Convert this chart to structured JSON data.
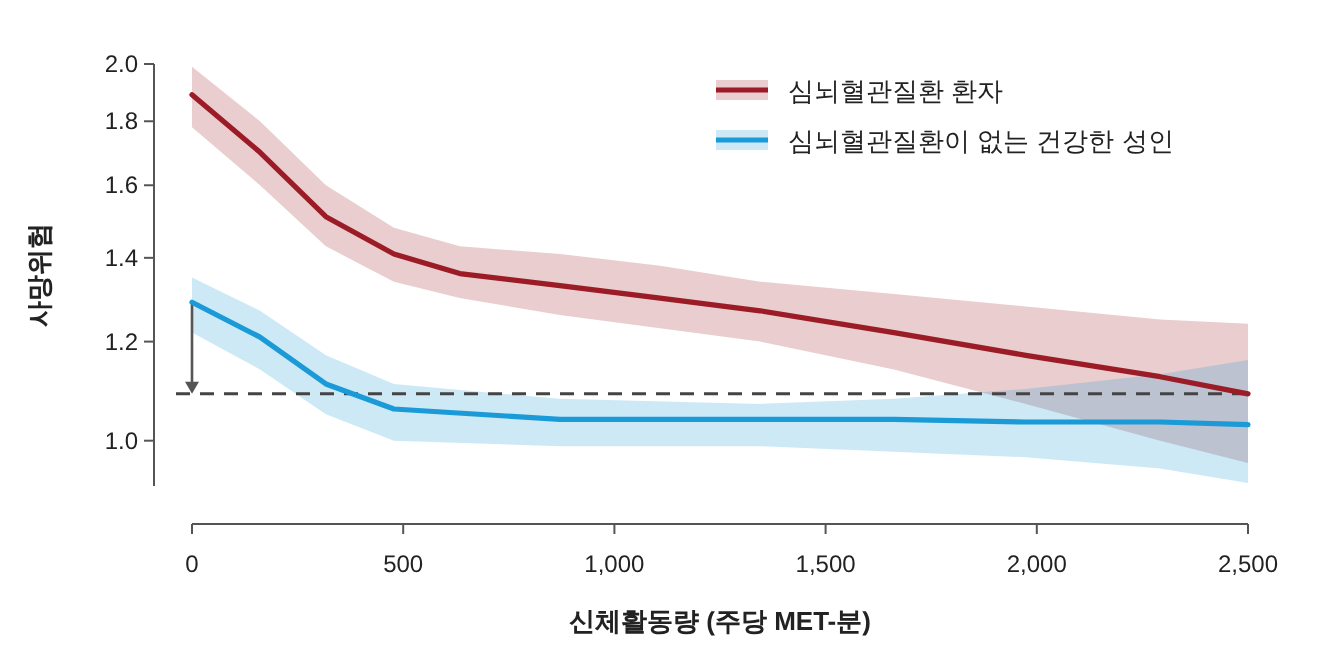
{
  "chart_data": {
    "type": "line",
    "xlabel": "신체활동량 (주당 MET-분)",
    "ylabel": "사망위험",
    "log": "y",
    "legend": "top right",
    "xlim": [
      0,
      2500
    ],
    "xticks": [
      0,
      500,
      {
        "value": 1000,
        "label": "1,000"
      },
      {
        "value": 1500,
        "label": "1,500"
      },
      {
        "value": 2000,
        "label": "2,000"
      },
      {
        "value": 2500,
        "label": "2,500"
      }
    ],
    "ylim": [
      0.92,
      2.0
    ],
    "yticks": [
      {
        "value": 1,
        "label": "1.0"
      },
      1.2,
      1.4,
      1.6,
      1.8,
      {
        "value": 2,
        "label": "2.0"
      }
    ],
    "ref_lines": [
      {
        "axis": "y",
        "value": 1.09,
        "color": "#444444",
        "line_style": "dashed"
      }
    ],
    "series": [
      {
        "name": "심뇌혈관질환 환자",
        "color": "#9b1b26",
        "x": [
          0,
          161,
          317,
          478,
          634,
          871,
          1108,
          1345,
          1662,
          1974,
          2292,
          2500
        ],
        "values": [
          1.89,
          1.7,
          1.51,
          1.41,
          1.36,
          1.33,
          1.3,
          1.27,
          1.22,
          1.17,
          1.125,
          1.09
        ],
        "upper": [
          1.99,
          1.8,
          1.6,
          1.48,
          1.43,
          1.41,
          1.38,
          1.34,
          1.31,
          1.28,
          1.25,
          1.24
        ],
        "lower": [
          1.78,
          1.6,
          1.43,
          1.34,
          1.3,
          1.26,
          1.23,
          1.2,
          1.14,
          1.07,
          1.0,
          0.96
        ]
      },
      {
        "name": "심뇌혈관질환이 없는 건강한 성인",
        "color": "#1a9ad6",
        "x": [
          0,
          161,
          317,
          478,
          871,
          1345,
          1662,
          1974,
          2292,
          2500
        ],
        "values": [
          1.29,
          1.21,
          1.11,
          1.06,
          1.04,
          1.04,
          1.04,
          1.035,
          1.035,
          1.03
        ],
        "upper": [
          1.35,
          1.27,
          1.17,
          1.11,
          1.08,
          1.07,
          1.08,
          1.1,
          1.13,
          1.16
        ],
        "lower": [
          1.22,
          1.14,
          1.05,
          1.0,
          0.99,
          0.99,
          0.98,
          0.97,
          0.95,
          0.925
        ]
      }
    ]
  }
}
